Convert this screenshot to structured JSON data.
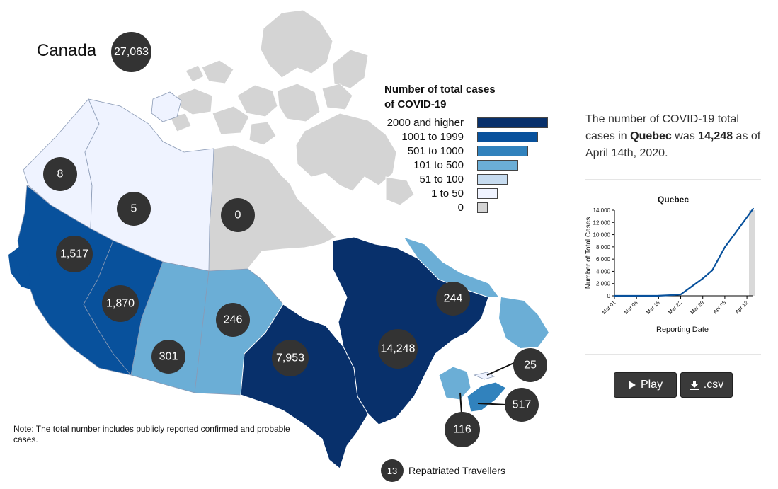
{
  "national": {
    "label": "Canada",
    "total": "27,063"
  },
  "legend": {
    "title_line1": "Number of total cases",
    "title_line2": "of COVID-19",
    "items": [
      {
        "label": "2000 and higher",
        "color": "#08306b"
      },
      {
        "label": "1001 to 1999",
        "color": "#08519c"
      },
      {
        "label": "501 to 1000",
        "color": "#3182bd"
      },
      {
        "label": "101 to 500",
        "color": "#6baed6"
      },
      {
        "label": "51 to 100",
        "color": "#c6dbef"
      },
      {
        "label": "1 to 50",
        "color": "#eff3ff"
      },
      {
        "label": "0",
        "color": "#d4d4d4"
      }
    ]
  },
  "regions": [
    {
      "name": "Yukon",
      "cases": "8",
      "color": "#eff3ff"
    },
    {
      "name": "Northwest Territories",
      "cases": "5",
      "color": "#eff3ff"
    },
    {
      "name": "Nunavut",
      "cases": "0",
      "color": "#d4d4d4"
    },
    {
      "name": "British Columbia",
      "cases": "1,517",
      "color": "#08519c"
    },
    {
      "name": "Alberta",
      "cases": "1,870",
      "color": "#08519c"
    },
    {
      "name": "Saskatchewan",
      "cases": "301",
      "color": "#6baed6"
    },
    {
      "name": "Manitoba",
      "cases": "246",
      "color": "#6baed6"
    },
    {
      "name": "Ontario",
      "cases": "7,953",
      "color": "#08306b"
    },
    {
      "name": "Quebec",
      "cases": "14,248",
      "color": "#08306b"
    },
    {
      "name": "Newfoundland and Labrador",
      "cases": "244",
      "color": "#6baed6"
    },
    {
      "name": "Prince Edward Island",
      "cases": "25",
      "color": "#eff3ff"
    },
    {
      "name": "Nova Scotia",
      "cases": "517",
      "color": "#3182bd"
    },
    {
      "name": "New Brunswick",
      "cases": "116",
      "color": "#6baed6"
    }
  ],
  "repatriated": {
    "count": "13",
    "label": "Repatriated Travellers"
  },
  "note": "Note: The total number includes publicly reported confirmed and probable cases.",
  "summary": {
    "prefix": "The number of COVID-19 total cases in ",
    "province": "Quebec",
    "middle": " was ",
    "value": "14,248",
    "suffix": " as of April 14th, 2020."
  },
  "chart_data": {
    "type": "line",
    "title": "Quebec",
    "xlabel": "Reporting Date",
    "ylabel": "Number of Total Cases",
    "x": [
      "Mar 01",
      "Mar 08",
      "Mar 15",
      "Mar 20",
      "Mar 22",
      "Mar 25",
      "Mar 29",
      "Apr 01",
      "Apr 05",
      "Apr 08",
      "Apr 12",
      "Apr 14"
    ],
    "x_day": [
      0,
      7,
      14,
      19,
      21,
      24,
      28,
      31,
      35,
      38,
      42,
      44
    ],
    "tick_labels": [
      "Mar 01",
      "Mar 08",
      "Mar 15",
      "Mar 22",
      "Mar 29",
      "Apr 05",
      "Apr 12"
    ],
    "tick_days": [
      0,
      7,
      14,
      21,
      28,
      35,
      42
    ],
    "series": [
      {
        "values": [
          0,
          1,
          17,
          139,
          221,
          1339,
          2840,
          4162,
          7944,
          10031,
          12846,
          14248
        ],
        "color": "#08519c"
      }
    ],
    "ylim": [
      0,
      14000
    ],
    "yticks": [
      0,
      2000,
      4000,
      6000,
      8000,
      10000,
      12000,
      14000
    ],
    "ytick_labels": [
      "0",
      "2,000",
      "4,000",
      "6,000",
      "8,000",
      "10,000",
      "12,000",
      "14,000"
    ],
    "highlight_last": true
  },
  "buttons": {
    "play": "Play",
    "csv": ".csv"
  }
}
